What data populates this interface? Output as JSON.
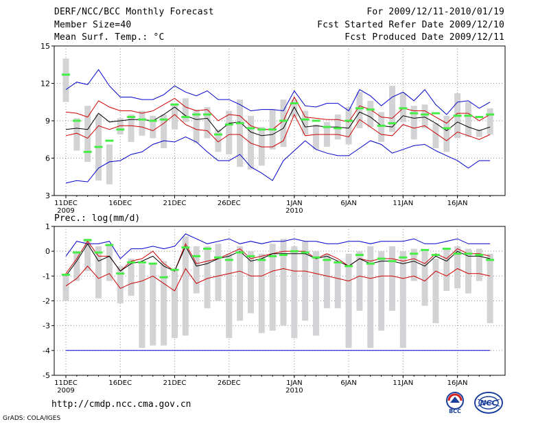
{
  "header": {
    "title": "DERF/NCC/BCC Monthly Forecast",
    "member_size": "Member Size=40",
    "variable": "Mean Surf. Temp.: °C",
    "for_period": "For 2009/12/11-2010/01/19",
    "started": "Fcst Started Refer Date 2009/12/10",
    "produced": "Fcst Produced Date 2009/12/11"
  },
  "footer": {
    "url": "http://cmdp.ncc.cma.gov.cn",
    "grads": "GrADS: COLA/IGES",
    "logo_bcc": "BCC",
    "logo_ncc": "NCC"
  },
  "colors": {
    "max_min": "#0000cc",
    "spread": "#cc0000",
    "mean": "#000000",
    "box": "#d3d3d6",
    "median": "#44ee44",
    "grid": "#888888"
  },
  "chart_data": [
    {
      "type": "line",
      "title": "Mean Surf. Temp.: °C",
      "ylim": [
        3,
        15
      ],
      "yticks": [
        "3",
        "6",
        "9",
        "12",
        "15"
      ],
      "xtick_labels": [
        "11DEC",
        "16DEC",
        "21DEC",
        "26DEC",
        "1JAN",
        "6JAN",
        "11JAN",
        "16JAN"
      ],
      "xtick_days": [
        0,
        5,
        10,
        15,
        21,
        26,
        31,
        36
      ],
      "year_labels": [
        "2009",
        "2010"
      ],
      "days": [
        0,
        1,
        2,
        3,
        4,
        5,
        6,
        7,
        8,
        9,
        10,
        11,
        12,
        13,
        14,
        15,
        16,
        17,
        18,
        19,
        20,
        21,
        22,
        23,
        24,
        25,
        26,
        27,
        28,
        29,
        30,
        31,
        32,
        33,
        34,
        35,
        36,
        37,
        38,
        39
      ],
      "series": [
        {
          "name": "max",
          "values": [
            4.0,
            4.2,
            4.1,
            5.2,
            5.7,
            5.8,
            6.3,
            6.5,
            7.1,
            7.4,
            7.3,
            7.7,
            7.3,
            6.5,
            5.8,
            5.8,
            6.3,
            5.3,
            4.8,
            4.2,
            5.8,
            6.6,
            7.4,
            6.7,
            6.4,
            6.2,
            6.2,
            6.8,
            7.4,
            7.1,
            6.4,
            6.7,
            7.0,
            7.1,
            6.6,
            6.2,
            5.8,
            5.2,
            5.8,
            5.8
          ]
        },
        {
          "name": "upper_spread",
          "values": [
            9.7,
            9.6,
            9.3,
            10.6,
            10.1,
            9.8,
            9.8,
            9.6,
            9.8,
            10.3,
            10.8,
            10.1,
            9.8,
            9.9,
            9.0,
            9.5,
            9.4,
            8.6,
            8.3,
            8.3,
            9.0,
            10.9,
            9.3,
            9.2,
            9.1,
            9.1,
            8.9,
            10.2,
            9.9,
            9.3,
            9.2,
            10.0,
            9.8,
            9.8,
            9.3,
            8.8,
            9.6,
            9.6,
            9.0,
            9.5
          ]
        },
        {
          "name": "mean",
          "values": [
            8.3,
            8.4,
            8.3,
            9.6,
            8.9,
            9.0,
            9.1,
            9.1,
            9.0,
            9.5,
            10.1,
            9.4,
            9.1,
            9.2,
            8.1,
            8.8,
            8.9,
            8.1,
            7.8,
            7.9,
            8.4,
            10.1,
            8.5,
            8.6,
            8.5,
            8.5,
            8.4,
            9.7,
            9.3,
            8.6,
            8.5,
            9.4,
            9.2,
            9.3,
            8.8,
            8.2,
            8.9,
            8.5,
            8.2,
            8.5
          ]
        },
        {
          "name": "lower_spread",
          "values": [
            7.8,
            8.0,
            7.6,
            8.6,
            8.3,
            8.6,
            8.6,
            8.5,
            8.2,
            8.8,
            9.5,
            8.7,
            8.3,
            8.2,
            7.3,
            7.9,
            7.9,
            7.2,
            6.9,
            6.9,
            7.4,
            9.5,
            7.8,
            7.9,
            7.9,
            7.9,
            7.7,
            9.1,
            8.5,
            7.9,
            7.8,
            8.7,
            8.4,
            8.6,
            8.0,
            7.4,
            8.1,
            7.8,
            7.5,
            7.9
          ]
        },
        {
          "name": "min",
          "values": [
            11.5,
            12.1,
            11.9,
            13.1,
            11.8,
            10.9,
            10.9,
            10.7,
            10.7,
            11.1,
            11.8,
            11.3,
            11.0,
            11.4,
            10.7,
            10.7,
            10.3,
            9.8,
            9.9,
            9.9,
            9.8,
            11.4,
            10.2,
            10.1,
            10.4,
            10.4,
            9.8,
            11.5,
            11.0,
            10.2,
            10.9,
            11.3,
            10.6,
            11.5,
            10.3,
            9.5,
            10.5,
            10.6,
            10.0,
            10.5
          ]
        }
      ],
      "boxes": {
        "low": [
          10.5,
          6.6,
          5.7,
          4.2,
          3.9,
          7.9,
          7.3,
          7.8,
          7.6,
          6.8,
          8.3,
          8.9,
          7.2,
          7.6,
          6.5,
          6.3,
          5.3,
          5.1,
          5.4,
          6.7,
          6.9,
          9.3,
          7.9,
          6.7,
          6.9,
          7.5,
          7.1,
          8.4,
          8.5,
          7.3,
          8.1,
          8.9,
          7.5,
          8.4,
          6.8,
          6.5,
          7.6,
          7.7,
          7.7,
          7.9
        ],
        "high": [
          14.0,
          9.2,
          10.2,
          9.5,
          7.1,
          9.2,
          9.5,
          9.8,
          9.4,
          9.5,
          10.4,
          10.8,
          9.9,
          10.1,
          8.3,
          9.8,
          10.7,
          9.4,
          8.5,
          9.9,
          10.7,
          10.7,
          9.8,
          8.7,
          8.9,
          9.5,
          10.1,
          11.3,
          10.6,
          9.7,
          11.8,
          11.2,
          10.2,
          10.3,
          8.8,
          9.4,
          11.2,
          10.5,
          8.3,
          10.0
        ],
        "median": [
          12.7,
          9.0,
          6.5,
          6.9,
          7.4,
          8.3,
          9.3,
          9.1,
          9.0,
          9.1,
          10.3,
          9.3,
          9.5,
          9.5,
          7.9,
          8.7,
          8.8,
          8.4,
          8.3,
          8.3,
          9.0,
          10.4,
          9.1,
          9.0,
          8.5,
          8.4,
          9.0,
          10.0,
          9.9,
          8.6,
          8.8,
          10.0,
          9.6,
          9.5,
          9.6,
          8.4,
          9.4,
          9.4,
          9.3,
          9.5
        ]
      }
    },
    {
      "type": "line",
      "title": "Prec.: log(mm/d)",
      "ylim": [
        -5,
        1
      ],
      "yticks": [
        "-5",
        "-4",
        "-3",
        "-2",
        "-1",
        "0",
        "1"
      ],
      "xtick_labels": [
        "11DEC",
        "16DEC",
        "21DEC",
        "26DEC",
        "1JAN",
        "6JAN",
        "11JAN",
        "16JAN"
      ],
      "xtick_days": [
        0,
        5,
        10,
        15,
        21,
        26,
        31,
        36
      ],
      "year_labels": [
        "2009",
        "2010"
      ],
      "days": [
        0,
        1,
        2,
        3,
        4,
        5,
        6,
        7,
        8,
        9,
        10,
        11,
        12,
        13,
        14,
        15,
        16,
        17,
        18,
        19,
        20,
        21,
        22,
        23,
        24,
        25,
        26,
        27,
        28,
        29,
        30,
        31,
        32,
        33,
        34,
        35,
        36,
        37,
        38,
        39
      ],
      "series": [
        {
          "name": "max",
          "values": [
            -0.2,
            0.4,
            0.3,
            0.3,
            0.4,
            -0.3,
            0.1,
            0.1,
            0.2,
            0.1,
            0.2,
            0.7,
            0.5,
            0.3,
            0.4,
            0.5,
            0.3,
            0.4,
            0.3,
            0.4,
            0.4,
            0.5,
            0.4,
            0.4,
            0.3,
            0.3,
            0.4,
            0.4,
            0.3,
            0.4,
            0.4,
            0.4,
            0.5,
            0.3,
            0.3,
            0.4,
            0.5,
            0.3,
            0.3,
            0.3
          ]
        },
        {
          "name": "upper_spread",
          "values": [
            -0.9,
            -0.3,
            0.4,
            -0.2,
            -0.2,
            -0.8,
            -0.4,
            -0.3,
            0.0,
            -0.5,
            -0.8,
            0.3,
            -0.5,
            -0.4,
            -0.3,
            -0.1,
            0.1,
            -0.3,
            -0.2,
            -0.1,
            0.0,
            0.0,
            0.0,
            -0.3,
            -0.1,
            -0.3,
            -0.6,
            -0.3,
            -0.4,
            -0.3,
            -0.3,
            -0.4,
            -0.3,
            -0.5,
            -0.1,
            -0.3,
            0.1,
            -0.1,
            -0.1,
            -0.2
          ]
        },
        {
          "name": "mean",
          "values": [
            -1.0,
            -0.4,
            0.3,
            -0.4,
            -0.2,
            -0.8,
            -0.5,
            -0.4,
            -0.2,
            -0.6,
            -0.8,
            0.2,
            -0.6,
            -0.5,
            -0.3,
            -0.2,
            0.0,
            -0.4,
            -0.3,
            -0.1,
            -0.1,
            -0.1,
            -0.1,
            -0.3,
            -0.2,
            -0.4,
            -0.6,
            -0.3,
            -0.5,
            -0.4,
            -0.4,
            -0.5,
            -0.4,
            -0.6,
            -0.2,
            -0.4,
            0.0,
            -0.2,
            -0.2,
            -0.3
          ]
        },
        {
          "name": "lower_spread",
          "values": [
            -1.4,
            -1.1,
            -0.6,
            -1.1,
            -0.9,
            -1.5,
            -1.3,
            -1.2,
            -1.0,
            -1.3,
            -1.6,
            -0.7,
            -1.3,
            -1.1,
            -1.0,
            -0.9,
            -0.8,
            -1.0,
            -1.0,
            -0.8,
            -0.7,
            -0.8,
            -0.8,
            -0.9,
            -1.0,
            -1.1,
            -1.2,
            -1.0,
            -1.1,
            -1.0,
            -1.0,
            -1.1,
            -1.0,
            -1.2,
            -0.8,
            -1.0,
            -0.7,
            -0.9,
            -0.9,
            -1.0
          ]
        },
        {
          "name": "min",
          "values": [
            -4.0,
            -4.0,
            -4.0,
            -4.0,
            -4.0,
            -4.0,
            -4.0,
            -4.0,
            -4.0,
            -4.0,
            -4.0,
            -4.0,
            -4.0,
            -4.0,
            -4.0,
            -4.0,
            -4.0,
            -4.0,
            -4.0,
            -4.0,
            -4.0,
            -4.0,
            -4.0,
            -4.0,
            -4.0,
            -4.0,
            -4.0,
            -4.0,
            -4.0,
            -4.0,
            -4.0,
            -4.0,
            -4.0,
            -4.0,
            -4.0,
            -4.0,
            -4.0,
            -4.0,
            -4.0,
            -4.0
          ]
        }
      ],
      "boxes": {
        "low": [
          -2.0,
          -1.2,
          -0.8,
          -1.9,
          -1.2,
          -2.1,
          -1.8,
          -3.9,
          -3.8,
          -3.8,
          -3.5,
          -3.4,
          -1.7,
          -2.3,
          -2.0,
          -3.5,
          -2.8,
          -2.5,
          -3.3,
          -3.2,
          -3.0,
          -3.5,
          -2.8,
          -3.4,
          -2.3,
          -2.3,
          -3.9,
          -2.4,
          -3.9,
          -3.2,
          -2.4,
          -3.9,
          -1.2,
          -2.2,
          -2.9,
          -1.6,
          -1.5,
          -1.7,
          -1.2,
          -2.9
        ],
        "high": [
          -0.9,
          0.0,
          0.5,
          0.2,
          0.3,
          -0.6,
          -0.3,
          -0.5,
          -0.5,
          -0.4,
          -0.7,
          0.6,
          0.2,
          0.2,
          0.3,
          -0.1,
          0.2,
          0.0,
          -0.1,
          0.3,
          0.5,
          0.2,
          0.4,
          0.0,
          -0.1,
          -0.4,
          -0.1,
          0.0,
          0.2,
          0.0,
          0.2,
          0.0,
          0.1,
          0.0,
          -0.3,
          0.1,
          0.2,
          0.1,
          0.1,
          -0.1
        ],
        "median": [
          -0.95,
          -0.05,
          0.45,
          -0.05,
          0.25,
          -0.9,
          -0.45,
          -0.45,
          -0.5,
          -1.05,
          -0.75,
          0.15,
          -0.2,
          0.1,
          -0.25,
          -0.35,
          -0.05,
          -0.2,
          -0.35,
          -0.2,
          -0.15,
          0.0,
          -0.05,
          -0.25,
          -0.35,
          -0.45,
          -0.6,
          -0.15,
          -0.5,
          -0.3,
          -0.4,
          -0.25,
          -0.1,
          0.05,
          -0.15,
          0.1,
          -0.1,
          -0.1,
          -0.15,
          -0.35
        ]
      }
    }
  ]
}
